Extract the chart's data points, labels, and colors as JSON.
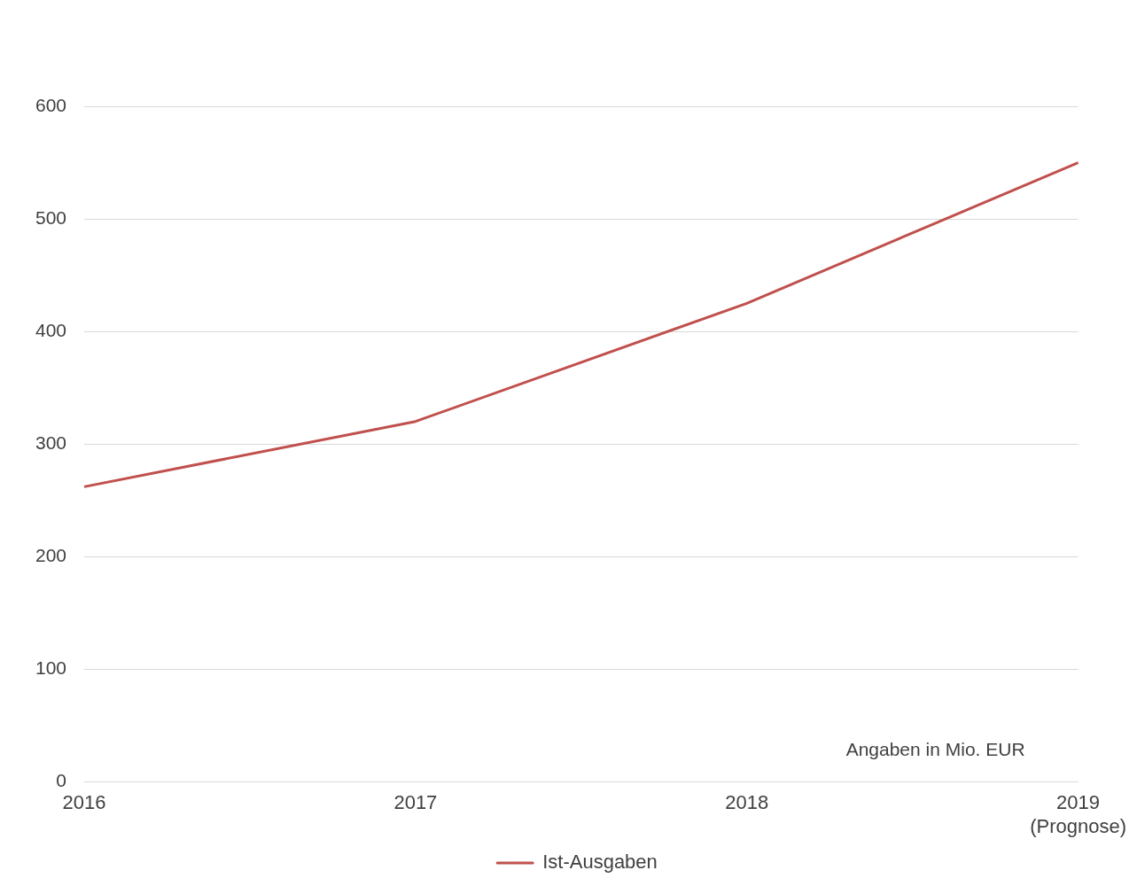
{
  "chart_data": {
    "type": "line",
    "categories": [
      "2016",
      "2017",
      "2018",
      "2019\n(Prognose)"
    ],
    "series": [
      {
        "name": "Ist-Ausgaben",
        "color": "#c0504d",
        "values": [
          262,
          320,
          425,
          550
        ]
      }
    ],
    "ylim": [
      0,
      600
    ],
    "yticks": [
      0,
      100,
      200,
      300,
      400,
      500,
      600
    ],
    "grid": "y",
    "legend": "bottom",
    "marker": "none",
    "line_style": "solid",
    "annotations": [
      "Angaben in Mio. EUR"
    ]
  }
}
